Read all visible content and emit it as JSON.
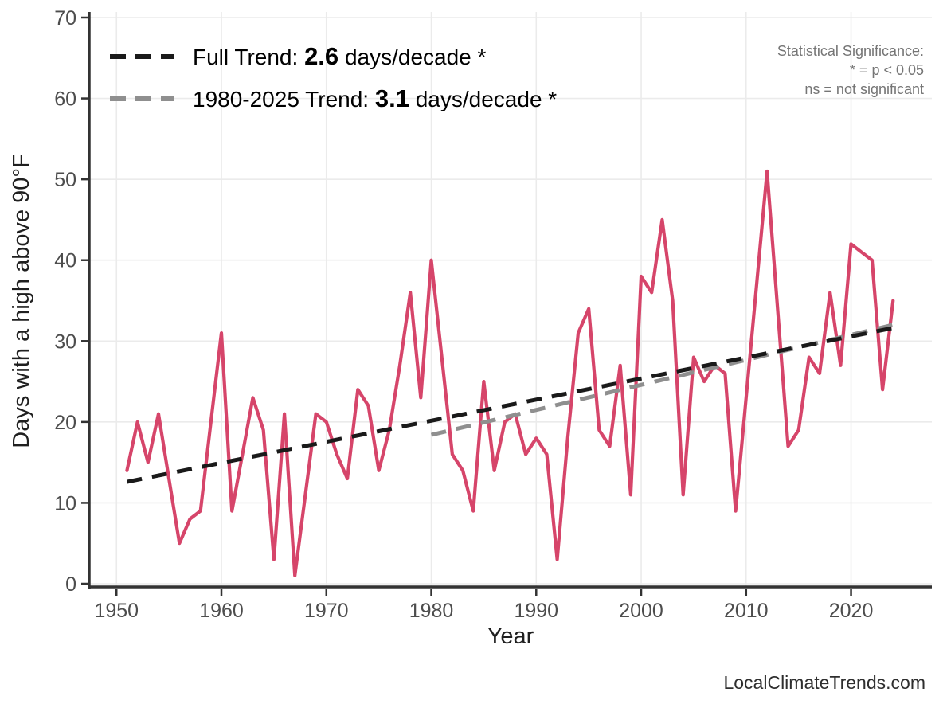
{
  "page": {
    "watermark": "LocalClimateTrends.com"
  },
  "chart_data": {
    "type": "line",
    "title": "",
    "xlabel": "Year",
    "ylabel": "Days with a high above 90°F",
    "xlim": [
      1947.4,
      2027.7
    ],
    "ylim": [
      0,
      70
    ],
    "x_ticks": [
      1950,
      1960,
      1970,
      1980,
      1990,
      2000,
      2010,
      2020
    ],
    "y_ticks": [
      0,
      10,
      20,
      30,
      40,
      50,
      60,
      70
    ],
    "grid": true,
    "legend_position": "top-left",
    "series": [
      {
        "name": "Days with a high above 90°F",
        "color": "#d6456a",
        "x": [
          1951,
          1952,
          1953,
          1954,
          1955,
          1956,
          1957,
          1958,
          1959,
          1960,
          1961,
          1962,
          1963,
          1964,
          1965,
          1966,
          1967,
          1968,
          1969,
          1970,
          1971,
          1972,
          1973,
          1974,
          1975,
          1976,
          1977,
          1978,
          1979,
          1980,
          1981,
          1982,
          1983,
          1984,
          1985,
          1986,
          1987,
          1988,
          1989,
          1990,
          1991,
          1992,
          1993,
          1994,
          1995,
          1996,
          1997,
          1998,
          1999,
          2000,
          2001,
          2002,
          2003,
          2004,
          2005,
          2006,
          2007,
          2008,
          2009,
          2010,
          2011,
          2012,
          2013,
          2014,
          2015,
          2016,
          2017,
          2018,
          2019,
          2020,
          2021,
          2022,
          2023,
          2024
        ],
        "values": [
          14,
          20,
          15,
          21,
          13,
          5,
          8,
          9,
          20,
          31,
          9,
          16,
          23,
          19,
          3,
          21,
          1,
          11,
          21,
          20,
          16,
          13,
          24,
          22,
          14,
          19,
          27,
          36,
          23,
          40,
          28,
          16,
          14,
          9,
          25,
          14,
          20,
          21,
          16,
          18,
          16,
          3,
          18,
          31,
          34,
          19,
          17,
          27,
          11,
          38,
          36,
          45,
          35,
          11,
          28,
          25,
          27,
          26,
          9,
          23,
          37,
          51,
          34,
          17,
          19,
          28,
          26,
          36,
          27,
          42,
          41,
          40,
          24,
          35
        ]
      }
    ],
    "trends": [
      {
        "name": "Full Trend",
        "label_prefix": "Full Trend: ",
        "value": "2.6",
        "label_suffix": " days/decade *",
        "color": "#1a1a1a",
        "x_start": 1951,
        "y_start": 12.6,
        "x_end": 2024.3,
        "y_end": 31.7,
        "slope_days_per_decade": 2.6,
        "significant": true
      },
      {
        "name": "1980-2025 Trend",
        "label_prefix": "1980-2025 Trend: ",
        "value": "3.1",
        "label_suffix": " days/decade *",
        "color": "#8f8f8f",
        "x_start": 1980,
        "y_start": 18.4,
        "x_end": 2024.3,
        "y_end": 32.1,
        "slope_days_per_decade": 3.1,
        "significant": true
      }
    ],
    "annotation": {
      "lines": [
        "Statistical Significance:",
        "* = p < 0.05",
        "ns = not significant"
      ]
    }
  }
}
